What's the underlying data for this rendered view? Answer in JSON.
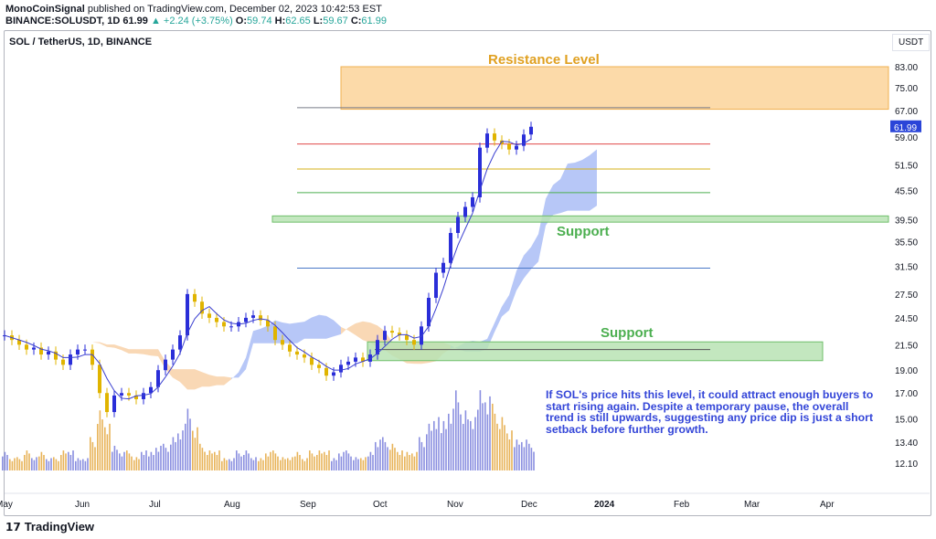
{
  "header": {
    "author": "MonoCoinSignal",
    "published": " published on TradingView.com, December 02, 2023 10:42:53 EST",
    "symbol": "BINANCE:SOLUSDT, 1D",
    "last": "61.99",
    "change": "▲ +2.24 (+3.75%)",
    "o_label": "O:",
    "o": "59.74",
    "h_label": "H:",
    "h": "62.65",
    "l_label": "L:",
    "l": "59.67",
    "c_label": "C:",
    "c": "61.99"
  },
  "chart_title": "SOL / TetherUS, 1D, BINANCE",
  "currency": "USDT",
  "last_price_label": "61.99",
  "annotations": {
    "resistance": "Resistance Level",
    "support1": "Support",
    "support2": "Support",
    "note": "If SOL's price hits this level, it could attract enough buyers to start rising again. Despite a temporary pause, the overall trend is still upwards, suggesting any price dip is just a short setback before further growth."
  },
  "footer": {
    "brand": "TradingView"
  },
  "colors": {
    "up": "#2a2ed8",
    "down": "#e0b400",
    "resistance_zone": "#fbd49a",
    "support_zone": "#b9e3b4",
    "cloud_bull": "#b7c7f7",
    "cloud_bear": "#f9d8b5",
    "last_price": "#2a45d8",
    "annotation_text": "#3446d8"
  },
  "chart_data": {
    "type": "candlestick",
    "scale": "log",
    "ylim": [
      12.1,
      83
    ],
    "y_ticks": [
      "83.00",
      "75.00",
      "67.00",
      "59.00",
      "51.50",
      "45.50",
      "39.50",
      "35.50",
      "31.50",
      "27.50",
      "24.50",
      "21.50",
      "19.00",
      "17.00",
      "15.00",
      "13.40",
      "12.10"
    ],
    "x_ticks": [
      "May",
      "Jun",
      "Jul",
      "Aug",
      "Sep",
      "Oct",
      "Nov",
      "Dec",
      "2024",
      "Feb",
      "Mar",
      "Apr"
    ],
    "interval_days": 3,
    "closes": [
      22.5,
      22,
      21.5,
      21,
      21.2,
      20.5,
      20.8,
      20,
      19.5,
      20.5,
      21,
      21,
      19.5,
      17,
      15.5,
      16.8,
      17,
      16.8,
      16.5,
      17,
      17.5,
      19,
      20,
      21,
      22.5,
      27.5,
      26.5,
      25,
      24.5,
      24,
      23.5,
      23.5,
      24,
      24.5,
      24.8,
      24.2,
      23.5,
      22,
      21.5,
      20.8,
      20.5,
      20.2,
      19.5,
      19.2,
      18.5,
      18.8,
      19.5,
      19.8,
      20.2,
      19.8,
      20.5,
      22,
      23,
      22.8,
      22.5,
      22,
      21.5,
      23.5,
      27,
      30.5,
      32,
      37,
      40,
      42,
      44,
      56,
      60,
      58,
      57,
      55.5,
      56.5,
      59.7,
      61.99
    ],
    "volume": [
      3,
      2,
      2,
      3,
      2,
      3,
      2,
      2,
      3,
      3,
      2,
      2,
      5,
      9,
      7,
      4,
      3,
      3,
      2,
      3,
      3,
      4,
      4,
      5,
      6,
      10,
      7,
      4,
      3,
      3,
      2,
      2,
      3,
      3,
      2,
      2,
      3,
      3,
      2,
      2,
      3,
      2,
      3,
      3,
      3,
      2,
      3,
      3,
      2,
      2,
      3,
      5,
      5,
      4,
      3,
      3,
      3,
      5,
      7,
      8,
      8,
      10,
      12,
      9,
      8,
      13,
      12,
      10,
      8,
      6,
      5,
      5,
      4
    ],
    "zones": [
      {
        "name": "resistance",
        "low": 67.5,
        "high": 83
      },
      {
        "name": "support1",
        "low": 39,
        "high": 40.2
      },
      {
        "name": "support2",
        "low": 19.9,
        "high": 21.8
      }
    ],
    "levels": [
      {
        "price": 68,
        "color": "#787b86"
      },
      {
        "price": 57,
        "color": "#e04848"
      },
      {
        "price": 50.5,
        "color": "#d6b21a"
      },
      {
        "price": 45,
        "color": "#4caf50"
      },
      {
        "price": 31.2,
        "color": "#4a78c8"
      },
      {
        "price": 21,
        "color": "#555"
      }
    ]
  }
}
